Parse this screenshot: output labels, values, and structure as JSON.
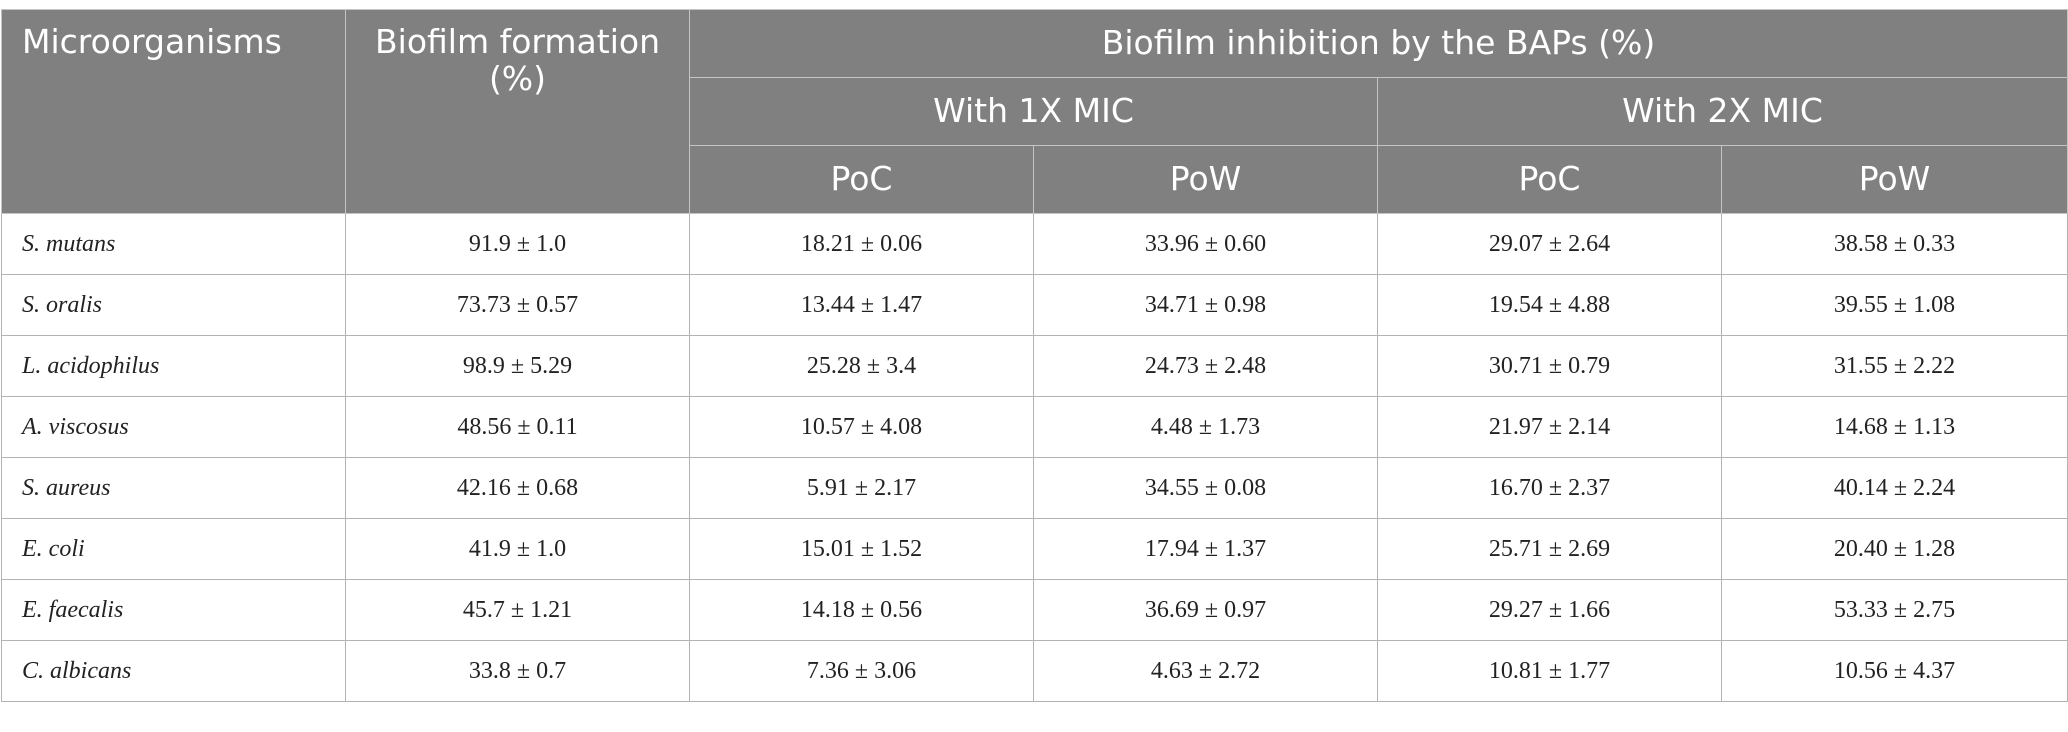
{
  "header": {
    "microorganisms": "Microorganisms",
    "biofilm_formation": "Biofilm formation (%)",
    "inhibition": "Biofilm inhibition by the BAPs (%)",
    "mic_1x": "With 1X MIC",
    "mic_2x": "With 2X MIC",
    "poc_1x": "PoC",
    "pow_1x": "PoW",
    "poc_2x": "PoC",
    "pow_2x": "PoW"
  },
  "rows": [
    {
      "organism": "S. mutans",
      "formation": "91.9 ± 1.0",
      "poc_1x": "18.21 ± 0.06",
      "pow_1x": "33.96 ± 0.60",
      "poc_2x": "29.07 ± 2.64",
      "pow_2x": "38.58 ± 0.33"
    },
    {
      "organism": "S. oralis",
      "formation": "73.73 ± 0.57",
      "poc_1x": "13.44 ± 1.47",
      "pow_1x": "34.71 ± 0.98",
      "poc_2x": "19.54 ± 4.88",
      "pow_2x": "39.55 ± 1.08"
    },
    {
      "organism": "L. acidophilus",
      "formation": "98.9 ± 5.29",
      "poc_1x": "25.28 ± 3.4",
      "pow_1x": "24.73 ± 2.48",
      "poc_2x": "30.71 ± 0.79",
      "pow_2x": "31.55 ± 2.22"
    },
    {
      "organism": "A. viscosus",
      "formation": "48.56 ± 0.11",
      "poc_1x": "10.57 ± 4.08",
      "pow_1x": "4.48 ± 1.73",
      "poc_2x": "21.97 ± 2.14",
      "pow_2x": "14.68 ± 1.13"
    },
    {
      "organism": "S. aureus",
      "formation": "42.16 ± 0.68",
      "poc_1x": "5.91 ± 2.17",
      "pow_1x": "34.55 ± 0.08",
      "poc_2x": "16.70 ± 2.37",
      "pow_2x": "40.14 ± 2.24"
    },
    {
      "organism": "E. coli",
      "formation": "41.9 ± 1.0",
      "poc_1x": "15.01 ± 1.52",
      "pow_1x": "17.94 ± 1.37",
      "poc_2x": "25.71 ± 2.69",
      "pow_2x": "20.40 ± 1.28"
    },
    {
      "organism": "E. faecalis",
      "formation": "45.7 ± 1.21",
      "poc_1x": "14.18 ± 0.56",
      "pow_1x": "36.69 ± 0.97",
      "poc_2x": "29.27 ± 1.66",
      "pow_2x": "53.33 ± 2.75"
    },
    {
      "organism": "C. albicans",
      "formation": "33.8 ± 0.7",
      "poc_1x": "7.36 ± 3.06",
      "pow_1x": "4.63 ± 2.72",
      "poc_2x": "10.81 ± 1.77",
      "pow_2x": "10.56 ± 4.37"
    }
  ]
}
